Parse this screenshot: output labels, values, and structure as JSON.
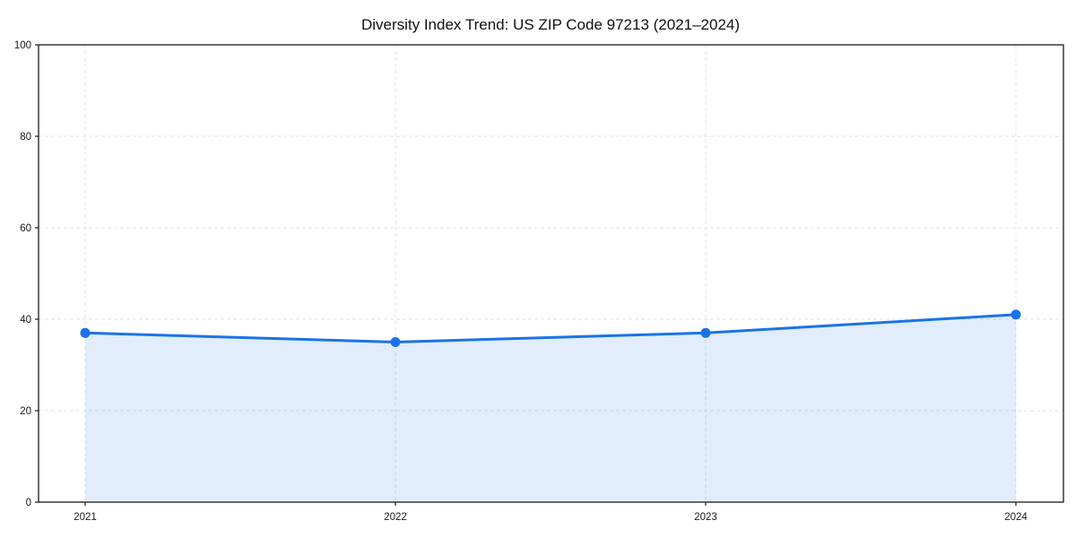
{
  "page": {
    "background_color": "#ffffff"
  },
  "chart_data": {
    "type": "area",
    "title": "Diversity Index Trend: US ZIP Code 97213 (2021–2024)",
    "categories": [
      "2021",
      "2022",
      "2023",
      "2024"
    ],
    "series": [
      {
        "name": "Diversity Index",
        "values": [
          37,
          35,
          37,
          41
        ]
      }
    ],
    "xlabel": "",
    "ylabel": "",
    "ylim": [
      0,
      100
    ],
    "yticks": [
      0,
      20,
      40,
      60,
      80,
      100
    ],
    "grid": true,
    "grid_style": "dashed",
    "legend_position": "none",
    "line_color": "#1a73e8",
    "fill_color": "rgba(26,115,232,0.13)",
    "gridline_color": "#e3e3e3",
    "spine_color": "#1a1a1a",
    "marker": "circle"
  }
}
